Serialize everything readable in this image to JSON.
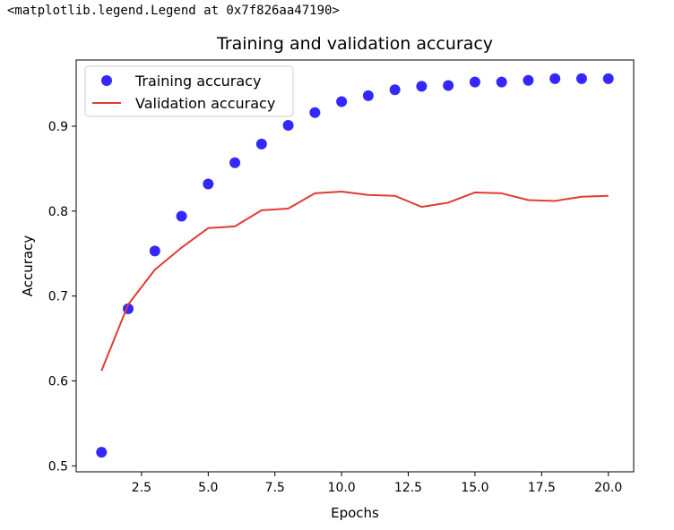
{
  "output_repr": "<matplotlib.legend.Legend at 0x7f826aa47190>",
  "chart_data": {
    "type": "line",
    "title": "Training and validation accuracy",
    "xlabel": "Epochs",
    "ylabel": "Accuracy",
    "xlim": [
      0.05,
      20.95
    ],
    "ylim": [
      0.493,
      0.978
    ],
    "xticks": [
      2.5,
      5.0,
      7.5,
      10.0,
      12.5,
      15.0,
      17.5,
      20.0
    ],
    "yticks": [
      0.5,
      0.6,
      0.7,
      0.8,
      0.9
    ],
    "grid": false,
    "legend_position": "upper left",
    "x": [
      1,
      2,
      3,
      4,
      5,
      6,
      7,
      8,
      9,
      10,
      11,
      12,
      13,
      14,
      15,
      16,
      17,
      18,
      19,
      20
    ],
    "series": [
      {
        "name": "Training accuracy",
        "style": "scatter",
        "color": "#1f10ff",
        "values": [
          0.516,
          0.685,
          0.753,
          0.794,
          0.832,
          0.857,
          0.879,
          0.901,
          0.916,
          0.929,
          0.936,
          0.943,
          0.947,
          0.948,
          0.952,
          0.952,
          0.954,
          0.956,
          0.956,
          0.956
        ]
      },
      {
        "name": "Validation accuracy",
        "style": "line",
        "color": "#e03c31",
        "values": [
          0.612,
          0.69,
          0.731,
          0.757,
          0.78,
          0.782,
          0.801,
          0.803,
          0.821,
          0.823,
          0.819,
          0.818,
          0.805,
          0.81,
          0.822,
          0.821,
          0.813,
          0.812,
          0.817,
          0.818
        ]
      }
    ]
  }
}
